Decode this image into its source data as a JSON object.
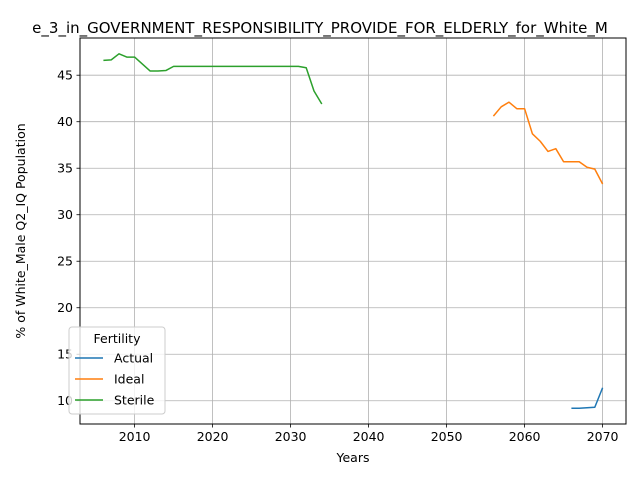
{
  "chart_data": {
    "type": "line",
    "title": "e_3_in_GOVERNMENT_RESPONSIBILITY_PROVIDE_FOR_ELDERLY_for_White_M",
    "xlabel": "Years",
    "ylabel": "% of White_Male Q2_IQ Population",
    "xlim": [
      2003,
      2073
    ],
    "ylim": [
      7.5,
      49
    ],
    "xticks": [
      2010,
      2020,
      2030,
      2040,
      2050,
      2060,
      2070
    ],
    "yticks": [
      10,
      15,
      20,
      25,
      30,
      35,
      40,
      45
    ],
    "grid": true,
    "legend": {
      "title": "Fertility",
      "placement": "lower-left"
    },
    "series": [
      {
        "name": "Actual",
        "color": "#1f77b4",
        "x": [
          2066,
          2067,
          2068,
          2069,
          2070
        ],
        "y": [
          9.2,
          9.2,
          9.25,
          9.3,
          11.4
        ]
      },
      {
        "name": "Ideal",
        "color": "#ff7f0e",
        "x": [
          2056,
          2057,
          2058,
          2059,
          2060,
          2061,
          2062,
          2063,
          2064,
          2065,
          2066,
          2067,
          2068,
          2069,
          2070
        ],
        "y": [
          40.6,
          41.6,
          42.1,
          41.4,
          41.4,
          38.7,
          37.9,
          36.8,
          37.1,
          35.7,
          35.7,
          35.7,
          35.1,
          34.9,
          33.3
        ]
      },
      {
        "name": "Sterile",
        "color": "#2ca02c",
        "x": [
          2006,
          2007,
          2008,
          2009,
          2010,
          2011,
          2012,
          2013,
          2014,
          2015,
          2016,
          2017,
          2018,
          2019,
          2020,
          2021,
          2022,
          2023,
          2024,
          2025,
          2026,
          2027,
          2028,
          2029,
          2030,
          2031,
          2032,
          2033,
          2034
        ],
        "y": [
          46.6,
          46.65,
          47.3,
          46.95,
          46.95,
          46.2,
          45.45,
          45.45,
          45.5,
          45.95,
          45.95,
          45.95,
          45.95,
          45.95,
          45.95,
          45.95,
          45.95,
          45.95,
          45.95,
          45.95,
          45.95,
          45.95,
          45.95,
          45.95,
          45.95,
          45.95,
          45.8,
          43.3,
          41.9
        ]
      }
    ]
  }
}
